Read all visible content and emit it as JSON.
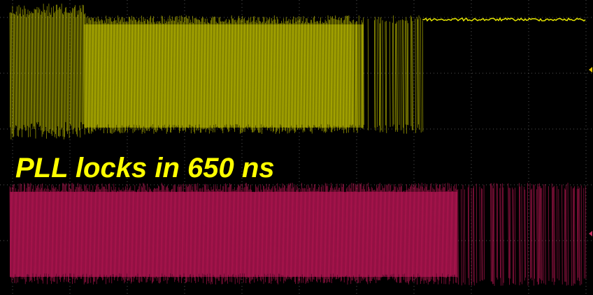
{
  "annotation": "PLL locks in 650 ns"
}
